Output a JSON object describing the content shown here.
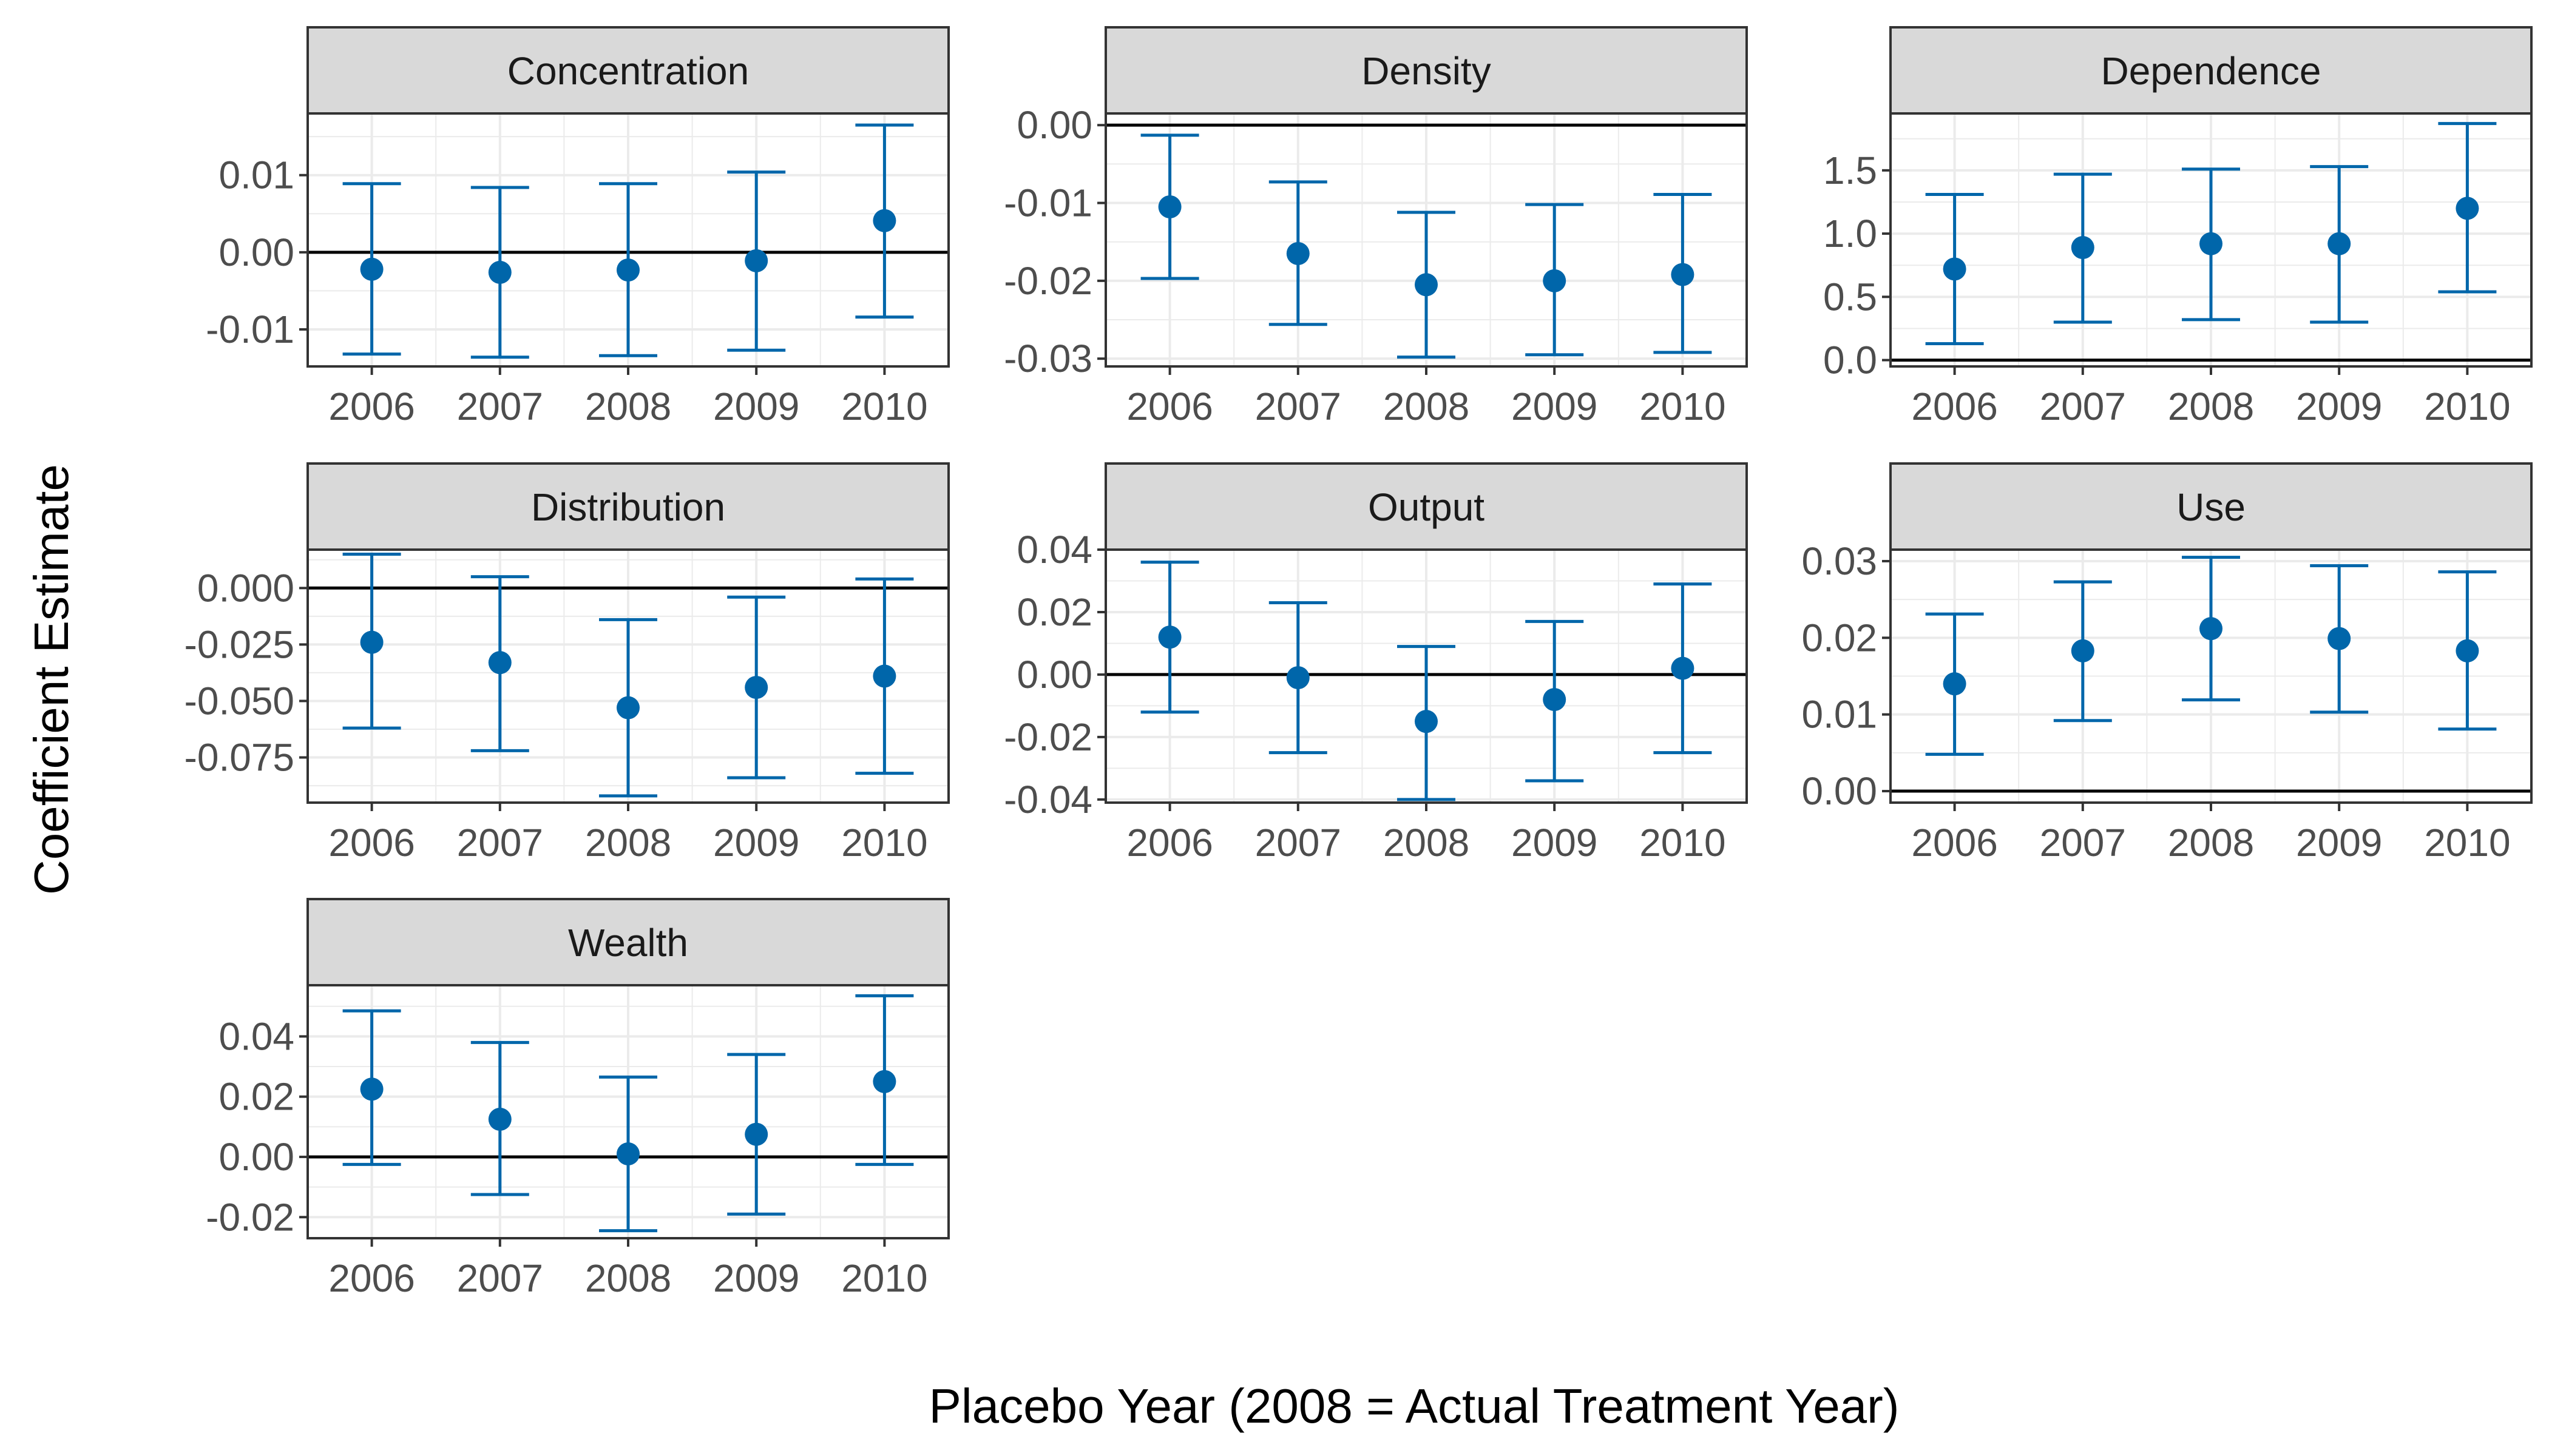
{
  "chart_data": {
    "type": "errorbar-facet",
    "xlabel": "Placebo Year (2008 = Actual Treatment Year)",
    "ylabel": "Coefficient Estimate",
    "x": [
      2006,
      2007,
      2008,
      2009,
      2010
    ],
    "grid": true,
    "legend": "none",
    "colors": {
      "point": "#0066aa",
      "zero_line": "#000000",
      "strip": "#d9d9d9",
      "grid": "#ebebeb"
    },
    "panels": [
      {
        "name": "Concentration",
        "ylim": [
          -0.0148,
          0.018
        ],
        "yticks": [
          -0.01,
          0.0,
          0.01
        ],
        "tick_labels": [
          "-0.01",
          "0.00",
          "0.01"
        ],
        "estimate": [
          -0.0022,
          -0.0026,
          -0.0023,
          -0.0011,
          0.0041
        ],
        "lower": [
          -0.0132,
          -0.0136,
          -0.0134,
          -0.0127,
          -0.0084
        ],
        "upper": [
          0.0089,
          0.0084,
          0.0089,
          0.0104,
          0.0165
        ]
      },
      {
        "name": "Density",
        "ylim": [
          -0.031,
          0.0015
        ],
        "yticks": [
          -0.03,
          -0.02,
          -0.01,
          0.0
        ],
        "tick_labels": [
          "-0.03",
          "-0.02",
          "-0.01",
          "0.00"
        ],
        "estimate": [
          -0.0105,
          -0.0165,
          -0.0205,
          -0.02,
          -0.0192
        ],
        "lower": [
          -0.0197,
          -0.0256,
          -0.0298,
          -0.0295,
          -0.0292
        ],
        "upper": [
          -0.0013,
          -0.0073,
          -0.0112,
          -0.0102,
          -0.0089
        ]
      },
      {
        "name": "Dependence",
        "ylim": [
          -0.05,
          1.95
        ],
        "yticks": [
          0.0,
          0.5,
          1.0,
          1.5
        ],
        "tick_labels": [
          "0.0",
          "0.5",
          "1.0",
          "1.5"
        ],
        "estimate": [
          0.72,
          0.89,
          0.92,
          0.92,
          1.2
        ],
        "lower": [
          0.13,
          0.3,
          0.32,
          0.3,
          0.54
        ],
        "upper": [
          1.31,
          1.47,
          1.51,
          1.53,
          1.87
        ]
      },
      {
        "name": "Distribution",
        "ylim": [
          -0.095,
          0.017
        ],
        "yticks": [
          -0.075,
          -0.05,
          -0.025,
          0.0
        ],
        "tick_labels": [
          "-0.075",
          "-0.050",
          "-0.025",
          "0.000"
        ],
        "estimate": [
          -0.024,
          -0.033,
          -0.053,
          -0.044,
          -0.039
        ],
        "lower": [
          -0.062,
          -0.072,
          -0.092,
          -0.084,
          -0.082
        ],
        "upper": [
          0.015,
          0.005,
          -0.014,
          -0.004,
          0.004
        ]
      },
      {
        "name": "Output",
        "ylim": [
          -0.041,
          0.04
        ],
        "yticks": [
          -0.04,
          -0.02,
          0.0,
          0.02,
          0.04
        ],
        "tick_labels": [
          "-0.04",
          "-0.02",
          "0.00",
          "0.02",
          "0.04"
        ],
        "estimate": [
          0.012,
          -0.001,
          -0.015,
          -0.008,
          0.002
        ],
        "lower": [
          -0.012,
          -0.025,
          -0.04,
          -0.034,
          -0.025
        ],
        "upper": [
          0.036,
          0.023,
          0.009,
          0.017,
          0.029
        ]
      },
      {
        "name": "Use",
        "ylim": [
          -0.0015,
          0.0315
        ],
        "yticks": [
          0.0,
          0.01,
          0.02,
          0.03
        ],
        "tick_labels": [
          "0.00",
          "0.01",
          "0.02",
          "0.03"
        ],
        "estimate": [
          0.014,
          0.0183,
          0.0212,
          0.0199,
          0.0183
        ],
        "lower": [
          0.0048,
          0.0092,
          0.0119,
          0.0103,
          0.0081
        ],
        "upper": [
          0.0231,
          0.0273,
          0.0305,
          0.0294,
          0.0286
        ]
      },
      {
        "name": "Wealth",
        "ylim": [
          -0.027,
          0.057
        ],
        "yticks": [
          -0.02,
          0.0,
          0.02,
          0.04
        ],
        "tick_labels": [
          "-0.02",
          "0.00",
          "0.02",
          "0.04"
        ],
        "estimate": [
          0.0225,
          0.0125,
          0.001,
          0.0075,
          0.025
        ],
        "lower": [
          -0.0025,
          -0.0125,
          -0.0245,
          -0.019,
          -0.0025
        ],
        "upper": [
          0.0485,
          0.038,
          0.0265,
          0.034,
          0.0535
        ]
      }
    ]
  }
}
